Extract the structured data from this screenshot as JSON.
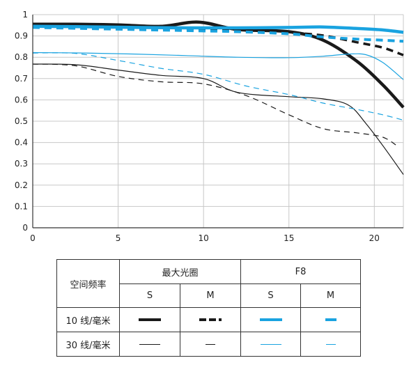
{
  "chart_data": {
    "type": "line",
    "title": "",
    "xlabel": "",
    "ylabel": "",
    "xlim": [
      0,
      21.7
    ],
    "ylim": [
      0,
      1
    ],
    "x_ticks": [
      0,
      5,
      10,
      15,
      20
    ],
    "y_ticks": [
      0,
      0.1,
      0.2,
      0.3,
      0.4,
      0.5,
      0.6,
      0.7,
      0.8,
      0.9,
      1
    ],
    "x_tick_labels": [
      "0",
      "5",
      "10",
      "15",
      "20"
    ],
    "y_tick_labels": [
      "0",
      "0.1",
      "0.2",
      "0.3",
      "0.4",
      "0.5",
      "0.6",
      "0.7",
      "0.8",
      "0.9",
      "1"
    ],
    "grid": true,
    "series": [
      {
        "color": "#1a1a1a",
        "width": 4.5,
        "dash": "",
        "x": [
          0,
          2.5,
          5,
          7.5,
          9.7,
          12,
          15,
          17,
          19,
          20.5,
          21.7
        ],
        "y": [
          0.955,
          0.955,
          0.952,
          0.945,
          0.965,
          0.93,
          0.92,
          0.88,
          0.78,
          0.67,
          0.565
        ]
      },
      {
        "color": "#1a1a1a",
        "width": 3.5,
        "dash": "10,7",
        "x": [
          0,
          3,
          6,
          9,
          12,
          15,
          17,
          19,
          20.5,
          21.7
        ],
        "y": [
          0.95,
          0.945,
          0.938,
          0.932,
          0.925,
          0.915,
          0.902,
          0.87,
          0.845,
          0.81
        ]
      },
      {
        "color": "#1a1a1a",
        "width": 1.2,
        "dash": "",
        "x": [
          0,
          2.5,
          5,
          7.5,
          10,
          12,
          15,
          17,
          18.5,
          19.5,
          20.5,
          21.7
        ],
        "y": [
          0.768,
          0.765,
          0.74,
          0.715,
          0.7,
          0.635,
          0.615,
          0.605,
          0.575,
          0.49,
          0.385,
          0.25
        ]
      },
      {
        "color": "#1a1a1a",
        "width": 1.2,
        "dash": "8,6",
        "x": [
          0,
          2.5,
          5,
          7.5,
          10,
          12.5,
          15,
          17,
          19,
          20.5,
          21.4
        ],
        "y": [
          0.768,
          0.76,
          0.71,
          0.685,
          0.675,
          0.62,
          0.53,
          0.465,
          0.445,
          0.425,
          0.38
        ]
      },
      {
        "color": "#1aa3e0",
        "width": 4.5,
        "dash": "",
        "x": [
          0,
          3,
          6,
          9,
          12,
          15,
          17,
          19,
          20.5,
          21.7
        ],
        "y": [
          0.945,
          0.943,
          0.94,
          0.938,
          0.938,
          0.94,
          0.942,
          0.935,
          0.928,
          0.917
        ]
      },
      {
        "color": "#1aa3e0",
        "width": 4,
        "dash": "10,7",
        "x": [
          0,
          3,
          6,
          9,
          12,
          15,
          17,
          19,
          20.5,
          21.7
        ],
        "y": [
          0.94,
          0.935,
          0.93,
          0.925,
          0.92,
          0.91,
          0.895,
          0.885,
          0.88,
          0.875
        ]
      },
      {
        "color": "#1aa3e0",
        "width": 1.2,
        "dash": "",
        "x": [
          0,
          3,
          6,
          9,
          12,
          15,
          17,
          18.5,
          19.5,
          20.5,
          21.7
        ],
        "y": [
          0.822,
          0.82,
          0.815,
          0.808,
          0.8,
          0.798,
          0.805,
          0.815,
          0.812,
          0.775,
          0.695
        ]
      },
      {
        "color": "#1aa3e0",
        "width": 1.2,
        "dash": "8,6",
        "x": [
          0,
          2.5,
          5,
          7.5,
          10,
          12.5,
          15,
          17,
          19,
          20.5,
          21.7
        ],
        "y": [
          0.82,
          0.818,
          0.785,
          0.748,
          0.72,
          0.665,
          0.625,
          0.585,
          0.555,
          0.53,
          0.505
        ]
      }
    ]
  },
  "legend": {
    "header_freq": "空间频率",
    "header_max_aperture": "最大光圈",
    "header_f8": "F8",
    "col_s": "S",
    "col_m": "M",
    "row_10": "10 线/毫米",
    "row_30": "30 线/毫米"
  }
}
